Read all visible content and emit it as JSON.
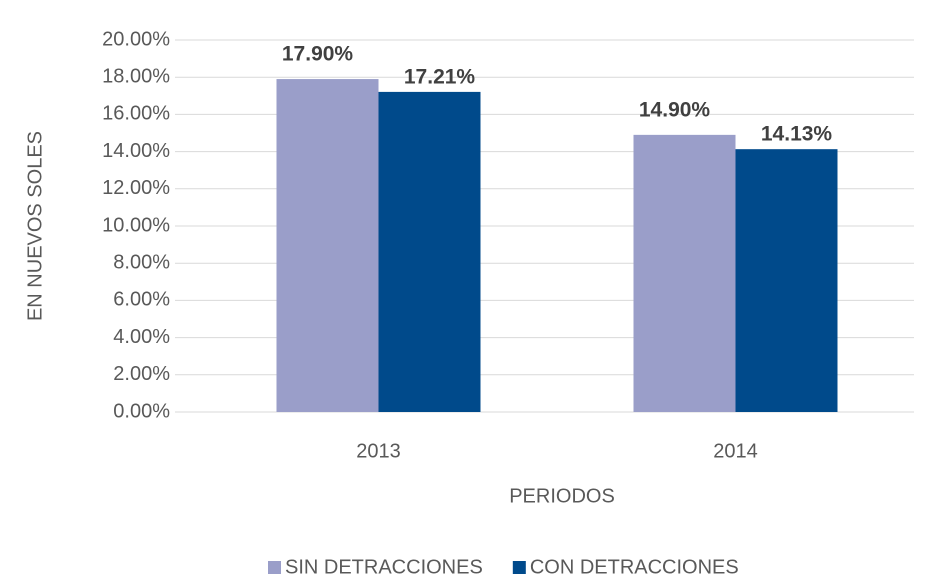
{
  "chart_data": {
    "type": "bar",
    "categories": [
      "2013",
      "2014"
    ],
    "series": [
      {
        "name": "SIN DETRACCIONES",
        "color": "#9a9ec9",
        "values": [
          17.9,
          14.9
        ],
        "value_labels": [
          "17.90%",
          "14.90%"
        ]
      },
      {
        "name": "CON DETRACCIONES",
        "color": "#004a8b",
        "values": [
          17.21,
          14.13
        ],
        "value_labels": [
          "17.21%",
          "14.13%"
        ]
      }
    ],
    "ylim": [
      0,
      20
    ],
    "yticks": [
      {
        "value": 0,
        "label": "0.00%"
      },
      {
        "value": 2,
        "label": "2.00%"
      },
      {
        "value": 4,
        "label": "4.00%"
      },
      {
        "value": 6,
        "label": "6.00%"
      },
      {
        "value": 8,
        "label": "8.00%"
      },
      {
        "value": 10,
        "label": "10.00%"
      },
      {
        "value": 12,
        "label": "12.00%"
      },
      {
        "value": 14,
        "label": "14.00%"
      },
      {
        "value": 16,
        "label": "16.00%"
      },
      {
        "value": 18,
        "label": "18.00%"
      },
      {
        "value": 20,
        "label": "20.00%"
      }
    ],
    "grid": true,
    "xlabel": "PERIODOS",
    "ylabel": "EN NUEVOS SOLES",
    "legend": "bottom"
  }
}
